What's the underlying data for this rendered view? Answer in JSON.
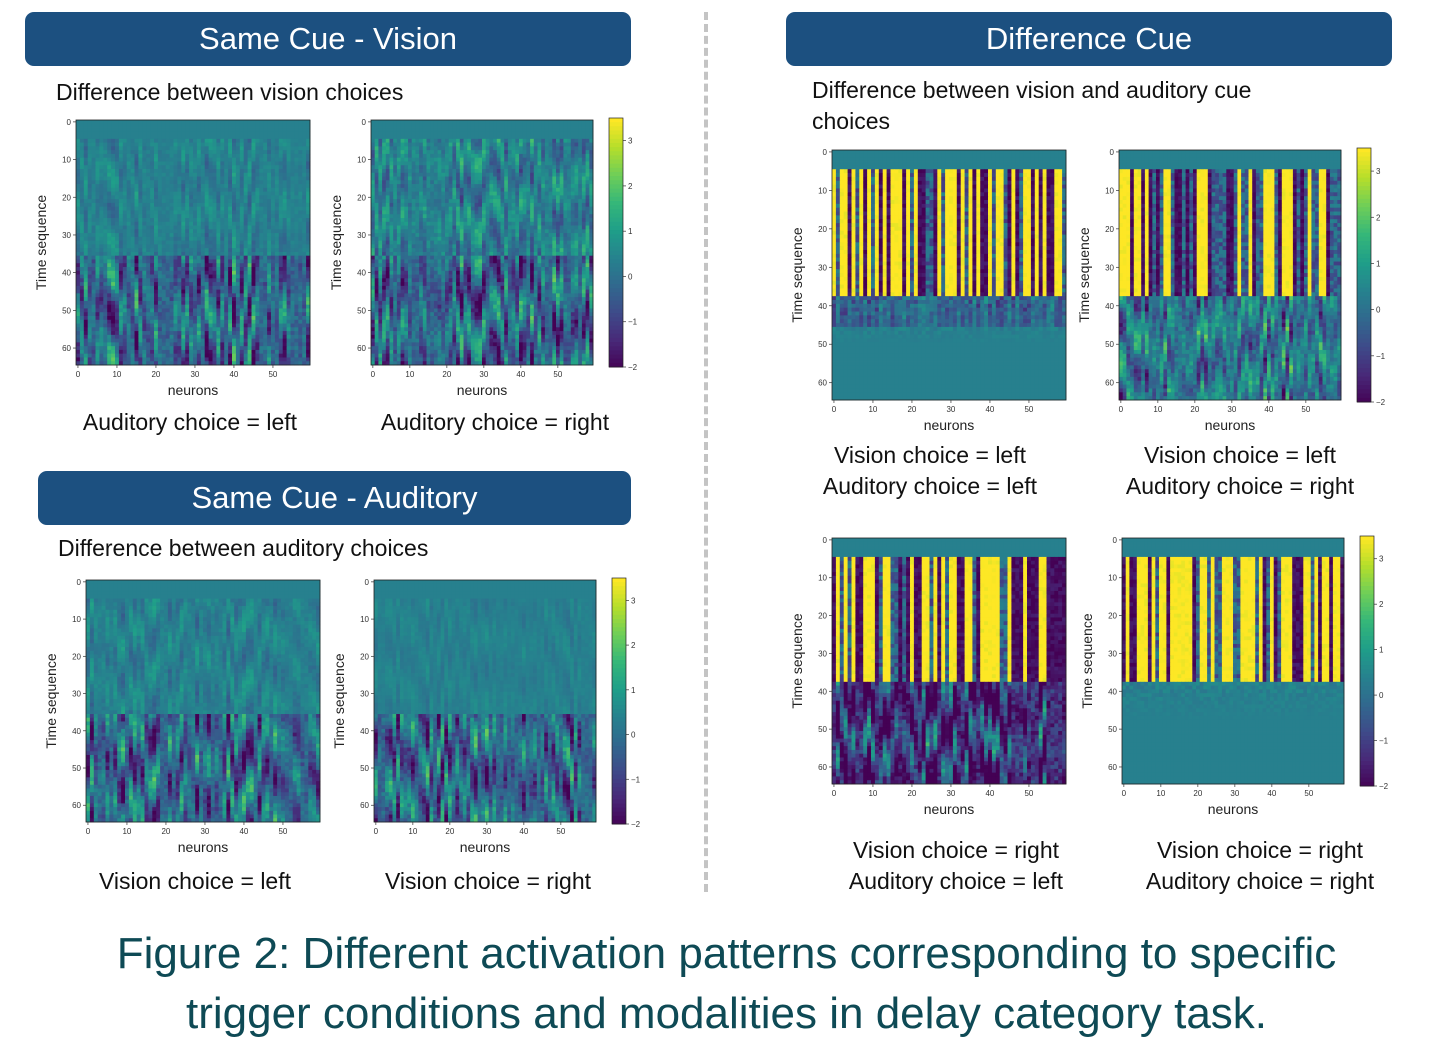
{
  "figure_caption_line1": "Figure 2: Different activation patterns corresponding to specific",
  "figure_caption_line2": "trigger conditions and modalities in delay category task.",
  "sections": {
    "same_vision": {
      "title": "Same Cue - Vision",
      "subtitle": "Difference between vision choices"
    },
    "same_auditory": {
      "title": "Same Cue - Auditory",
      "subtitle": "Difference between auditory choices"
    },
    "difference": {
      "title": "Difference Cue",
      "subtitle_line1": "Difference between vision and auditory cue",
      "subtitle_line2": "choices"
    }
  },
  "colors": {
    "banner": "#1c5080",
    "caption_text": "#0e4a55",
    "colormap": "viridis"
  },
  "panels": [
    {
      "id": "p1",
      "caption_lines": [
        "Auditory choice = left"
      ]
    },
    {
      "id": "p2",
      "caption_lines": [
        "Auditory choice = right"
      ]
    },
    {
      "id": "p3",
      "caption_lines": [
        "Vision choice = left"
      ]
    },
    {
      "id": "p4",
      "caption_lines": [
        "Vision choice = right"
      ]
    },
    {
      "id": "p5",
      "caption_lines": [
        "Vision choice = left",
        "Auditory choice = left"
      ]
    },
    {
      "id": "p6",
      "caption_lines": [
        "Vision choice = left",
        "Auditory choice = right"
      ]
    },
    {
      "id": "p7",
      "caption_lines": [
        "Vision choice = right",
        "Auditory choice = left"
      ]
    },
    {
      "id": "p8",
      "caption_lines": [
        "Vision choice = right",
        "Auditory choice = right"
      ]
    }
  ],
  "chart_data": [
    {
      "type": "heatmap",
      "panel": "p1",
      "xlabel": "neurons",
      "ylabel": "Time sequence",
      "x_ticks": [
        0,
        10,
        20,
        30,
        40,
        50
      ],
      "y_ticks": [
        0,
        10,
        20,
        30,
        40,
        50,
        60
      ],
      "n_neurons": 60,
      "n_time": 65,
      "pattern": "same_weak_then_strong"
    },
    {
      "type": "heatmap",
      "panel": "p2",
      "xlabel": "neurons",
      "ylabel": "Time sequence",
      "x_ticks": [
        0,
        10,
        20,
        30,
        40,
        50
      ],
      "y_ticks": [
        0,
        10,
        20,
        30,
        40,
        50,
        60
      ],
      "n_neurons": 60,
      "n_time": 65,
      "pattern": "same_medium_then_strong",
      "colorbar": {
        "min": -2,
        "max": 3.5,
        "ticks": [
          3,
          2,
          1,
          0,
          -1,
          -2
        ]
      }
    },
    {
      "type": "heatmap",
      "panel": "p3",
      "xlabel": "neurons",
      "ylabel": "Time sequence",
      "x_ticks": [
        0,
        10,
        20,
        30,
        40,
        50
      ],
      "y_ticks": [
        0,
        10,
        20,
        30,
        40,
        50,
        60
      ],
      "n_neurons": 60,
      "n_time": 65,
      "pattern": "same_weak_then_strong"
    },
    {
      "type": "heatmap",
      "panel": "p4",
      "xlabel": "neurons",
      "ylabel": "Time sequence",
      "x_ticks": [
        0,
        10,
        20,
        30,
        40,
        50
      ],
      "y_ticks": [
        0,
        10,
        20,
        30,
        40,
        50,
        60
      ],
      "n_neurons": 60,
      "n_time": 65,
      "pattern": "same_faint_then_strong",
      "colorbar": {
        "min": -2,
        "max": 3.5,
        "ticks": [
          3,
          2,
          1,
          0,
          -1,
          -2
        ]
      }
    },
    {
      "type": "heatmap",
      "panel": "p5",
      "xlabel": "neurons",
      "ylabel": "Time sequence",
      "x_ticks": [
        0,
        10,
        20,
        30,
        40,
        50
      ],
      "y_ticks": [
        0,
        10,
        20,
        30,
        40,
        50,
        60
      ],
      "n_neurons": 60,
      "n_time": 65,
      "pattern": "diff_strong_then_fade"
    },
    {
      "type": "heatmap",
      "panel": "p6",
      "xlabel": "neurons",
      "ylabel": "Time sequence",
      "x_ticks": [
        0,
        10,
        20,
        30,
        40,
        50
      ],
      "y_ticks": [
        0,
        10,
        20,
        30,
        40,
        50,
        60
      ],
      "n_neurons": 60,
      "n_time": 65,
      "pattern": "diff_strong_then_mixed",
      "colorbar": {
        "min": -2,
        "max": 3.5,
        "ticks": [
          3,
          2,
          1,
          0,
          -1,
          -2
        ]
      }
    },
    {
      "type": "heatmap",
      "panel": "p7",
      "xlabel": "neurons",
      "ylabel": "Time sequence",
      "x_ticks": [
        0,
        10,
        20,
        30,
        40,
        50
      ],
      "y_ticks": [
        0,
        10,
        20,
        30,
        40,
        50,
        60
      ],
      "n_neurons": 60,
      "n_time": 65,
      "pattern": "diff_strong_then_dark"
    },
    {
      "type": "heatmap",
      "panel": "p8",
      "xlabel": "neurons",
      "ylabel": "Time sequence",
      "x_ticks": [
        0,
        10,
        20,
        30,
        40,
        50
      ],
      "y_ticks": [
        0,
        10,
        20,
        30,
        40,
        50,
        60
      ],
      "n_neurons": 60,
      "n_time": 65,
      "pattern": "diff_strong_then_flat",
      "colorbar": {
        "min": -2,
        "max": 3.5,
        "ticks": [
          3,
          2,
          1,
          0,
          -1,
          -2
        ]
      }
    }
  ]
}
